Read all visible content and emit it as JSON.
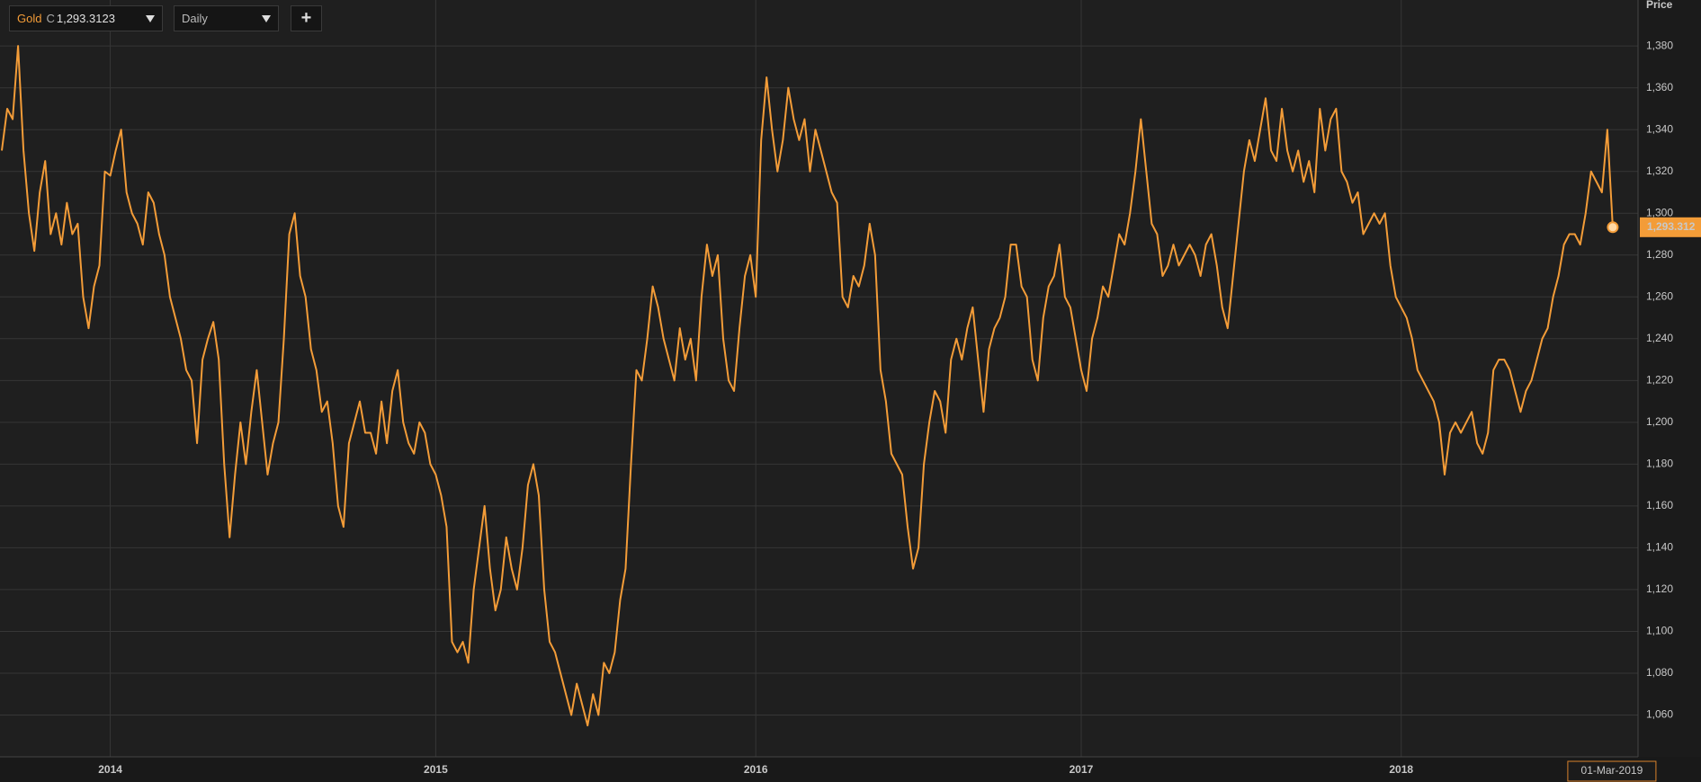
{
  "toolbar": {
    "instrument": "Gold",
    "field": "C",
    "value": "1,293.3123",
    "interval": "Daily",
    "add": "+"
  },
  "chart_data": {
    "type": "line",
    "y_axis_title": "Price",
    "color": "#f39c38",
    "grid": true,
    "last_price_label": "1,293.312",
    "ylim": [
      1040,
      1402
    ],
    "yticks": [
      {
        "value": 1060,
        "label": "1,060"
      },
      {
        "value": 1080,
        "label": "1,080"
      },
      {
        "value": 1100,
        "label": "1,100"
      },
      {
        "value": 1120,
        "label": "1,120"
      },
      {
        "value": 1140,
        "label": "1,140"
      },
      {
        "value": 1160,
        "label": "1,160"
      },
      {
        "value": 1180,
        "label": "1,180"
      },
      {
        "value": 1200,
        "label": "1,200"
      },
      {
        "value": 1220,
        "label": "1,220"
      },
      {
        "value": 1240,
        "label": "1,240"
      },
      {
        "value": 1260,
        "label": "1,260"
      },
      {
        "value": 1280,
        "label": "1,280"
      },
      {
        "value": 1300,
        "label": "1,300"
      },
      {
        "value": 1320,
        "label": "1,320"
      },
      {
        "value": 1340,
        "label": "1,340"
      },
      {
        "value": 1360,
        "label": "1,360"
      },
      {
        "value": 1380,
        "label": "1,380"
      }
    ],
    "categories": [
      null,
      null,
      null,
      null,
      null,
      null,
      null,
      null,
      null,
      null,
      null,
      null,
      null,
      null,
      null,
      null,
      null,
      null,
      null,
      null,
      "2014",
      null,
      null,
      null,
      null,
      null,
      null,
      null,
      null,
      null,
      null,
      null,
      null,
      null,
      null,
      null,
      null,
      null,
      null,
      null,
      null,
      null,
      null,
      null,
      null,
      null,
      null,
      null,
      null,
      null,
      null,
      null,
      null,
      null,
      null,
      null,
      null,
      null,
      null,
      null,
      null,
      null,
      null,
      null,
      null,
      null,
      null,
      null,
      null,
      null,
      null,
      null,
      null,
      null,
      null,
      null,
      null,
      null,
      null,
      null,
      "2015",
      null,
      null,
      null,
      null,
      null,
      null,
      null,
      null,
      null,
      null,
      null,
      null,
      null,
      null,
      null,
      null,
      null,
      null,
      null,
      null,
      null,
      null,
      null,
      null,
      null,
      null,
      null,
      null,
      null,
      null,
      null,
      null,
      null,
      null,
      null,
      null,
      null,
      null,
      null,
      null,
      null,
      null,
      null,
      null,
      null,
      null,
      null,
      null,
      null,
      null,
      null,
      null,
      null,
      null,
      null,
      null,
      null,
      null,
      "2016",
      null,
      null,
      null,
      null,
      null,
      null,
      null,
      null,
      null,
      null,
      null,
      null,
      null,
      null,
      null,
      null,
      null,
      null,
      null,
      null,
      null,
      null,
      null,
      null,
      null,
      null,
      null,
      null,
      null,
      null,
      null,
      null,
      null,
      null,
      null,
      null,
      null,
      null,
      null,
      null,
      null,
      null,
      null,
      null,
      null,
      null,
      null,
      null,
      null,
      null,
      null,
      null,
      null,
      null,
      null,
      null,
      null,
      null,
      null,
      "2017",
      null,
      null,
      null,
      null,
      null,
      null,
      null,
      null,
      null,
      null,
      null,
      null,
      null,
      null,
      null,
      null,
      null,
      null,
      null,
      null,
      null,
      null,
      null,
      null,
      null,
      null,
      null,
      null,
      null,
      null,
      null,
      null,
      null,
      null,
      null,
      null,
      null,
      null,
      null,
      null,
      null,
      null,
      null,
      null,
      null,
      null,
      null,
      null,
      null,
      null,
      null,
      null,
      null,
      null,
      null,
      null,
      null,
      null,
      "2018",
      null,
      null,
      null,
      null,
      null,
      null,
      null,
      null,
      null,
      null,
      null,
      null,
      null,
      null,
      null,
      null,
      null,
      null,
      null,
      null,
      null,
      null,
      null,
      null,
      null,
      null,
      null,
      null,
      null,
      null,
      null,
      null,
      null,
      null,
      null,
      null,
      null,
      null,
      "01-Mar-2019"
    ],
    "values": [
      1330,
      1350,
      1345,
      1380,
      1330,
      1300,
      1282,
      1310,
      1325,
      1290,
      1300,
      1285,
      1305,
      1290,
      1295,
      1260,
      1245,
      1265,
      1275,
      1320,
      1318,
      1330,
      1340,
      1310,
      1300,
      1295,
      1285,
      1310,
      1305,
      1290,
      1280,
      1260,
      1250,
      1240,
      1225,
      1220,
      1190,
      1230,
      1240,
      1248,
      1230,
      1180,
      1145,
      1175,
      1200,
      1180,
      1205,
      1225,
      1200,
      1175,
      1190,
      1200,
      1240,
      1290,
      1300,
      1270,
      1260,
      1235,
      1225,
      1205,
      1210,
      1190,
      1160,
      1150,
      1190,
      1200,
      1210,
      1195,
      1195,
      1185,
      1210,
      1190,
      1215,
      1225,
      1200,
      1190,
      1185,
      1200,
      1195,
      1180,
      1175,
      1165,
      1150,
      1095,
      1090,
      1095,
      1085,
      1120,
      1140,
      1160,
      1130,
      1110,
      1120,
      1145,
      1130,
      1120,
      1140,
      1170,
      1180,
      1165,
      1120,
      1095,
      1090,
      1080,
      1070,
      1060,
      1075,
      1065,
      1055,
      1070,
      1060,
      1085,
      1080,
      1090,
      1115,
      1130,
      1180,
      1225,
      1220,
      1240,
      1265,
      1255,
      1240,
      1230,
      1220,
      1245,
      1230,
      1240,
      1220,
      1260,
      1285,
      1270,
      1280,
      1240,
      1220,
      1215,
      1245,
      1270,
      1280,
      1260,
      1335,
      1365,
      1340,
      1320,
      1335,
      1360,
      1345,
      1335,
      1345,
      1320,
      1340,
      1330,
      1320,
      1310,
      1305,
      1260,
      1255,
      1270,
      1265,
      1275,
      1295,
      1280,
      1225,
      1210,
      1185,
      1180,
      1175,
      1150,
      1130,
      1140,
      1180,
      1200,
      1215,
      1210,
      1195,
      1230,
      1240,
      1230,
      1245,
      1255,
      1230,
      1205,
      1235,
      1245,
      1250,
      1260,
      1285,
      1285,
      1265,
      1260,
      1230,
      1220,
      1250,
      1265,
      1270,
      1285,
      1260,
      1255,
      1240,
      1225,
      1215,
      1240,
      1250,
      1265,
      1260,
      1275,
      1290,
      1285,
      1300,
      1320,
      1345,
      1320,
      1295,
      1290,
      1270,
      1275,
      1285,
      1275,
      1280,
      1285,
      1280,
      1270,
      1285,
      1290,
      1275,
      1255,
      1245,
      1270,
      1295,
      1320,
      1335,
      1325,
      1340,
      1355,
      1330,
      1325,
      1350,
      1330,
      1320,
      1330,
      1315,
      1325,
      1310,
      1350,
      1330,
      1345,
      1350,
      1320,
      1315,
      1305,
      1310,
      1290,
      1295,
      1300,
      1295,
      1300,
      1275,
      1260,
      1255,
      1250,
      1240,
      1225,
      1220,
      1215,
      1210,
      1200,
      1175,
      1195,
      1200,
      1195,
      1200,
      1205,
      1190,
      1185,
      1195,
      1225,
      1230,
      1230,
      1225,
      1215,
      1205,
      1215,
      1220,
      1230,
      1240,
      1245,
      1260,
      1270,
      1285,
      1290,
      1290,
      1285,
      1300,
      1320,
      1315,
      1310,
      1340,
      1293.3123
    ]
  }
}
